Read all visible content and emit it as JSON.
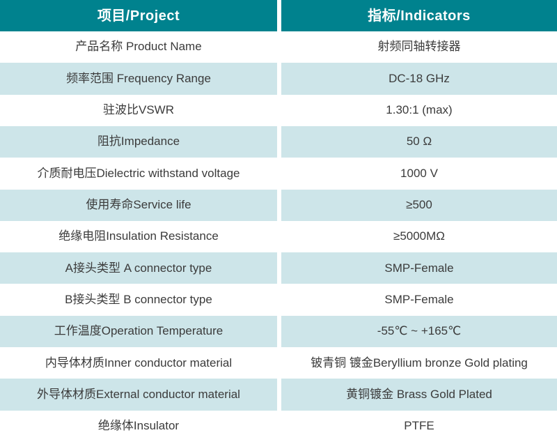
{
  "table": {
    "title": "Product specification table",
    "colors": {
      "header_bg": "#00828E",
      "header_text": "#FFFFFF",
      "row_bg": "#FFFFFF",
      "row_alt_bg": "#CDE5E9",
      "cell_text": "#3B3B3B"
    },
    "header": {
      "col_project": "项目/Project",
      "col_indicators": "指标/Indicators"
    },
    "rows": [
      {
        "label": "产品名称 Product Name",
        "value": "射频同轴转接器"
      },
      {
        "label": "频率范围 Frequency Range",
        "value": "DC-18 GHz"
      },
      {
        "label": "驻波比VSWR",
        "value": "1.30:1 (max)"
      },
      {
        "label": "阻抗Impedance",
        "value": "50 Ω"
      },
      {
        "label": "介质耐电压Dielectric withstand voltage",
        "value": "1000 V"
      },
      {
        "label": "使用寿命Service life",
        "value": "≥500"
      },
      {
        "label": "绝缘电阻Insulation Resistance",
        "value": "≥5000MΩ"
      },
      {
        "label": "A接头类型 A connector type",
        "value": "SMP-Female"
      },
      {
        "label": "B接头类型 B connector type",
        "value": "SMP-Female"
      },
      {
        "label": "工作温度Operation Temperature",
        "value": "-55℃ ~ +165℃"
      },
      {
        "label": "内导体材质Inner conductor material",
        "value": "铍青铜 镀金Beryllium bronze Gold plating"
      },
      {
        "label": "外导体材质External conductor material",
        "value": "黄铜镀金 Brass Gold Plated"
      },
      {
        "label": "绝缘体Insulator",
        "value": "PTFE"
      }
    ]
  }
}
